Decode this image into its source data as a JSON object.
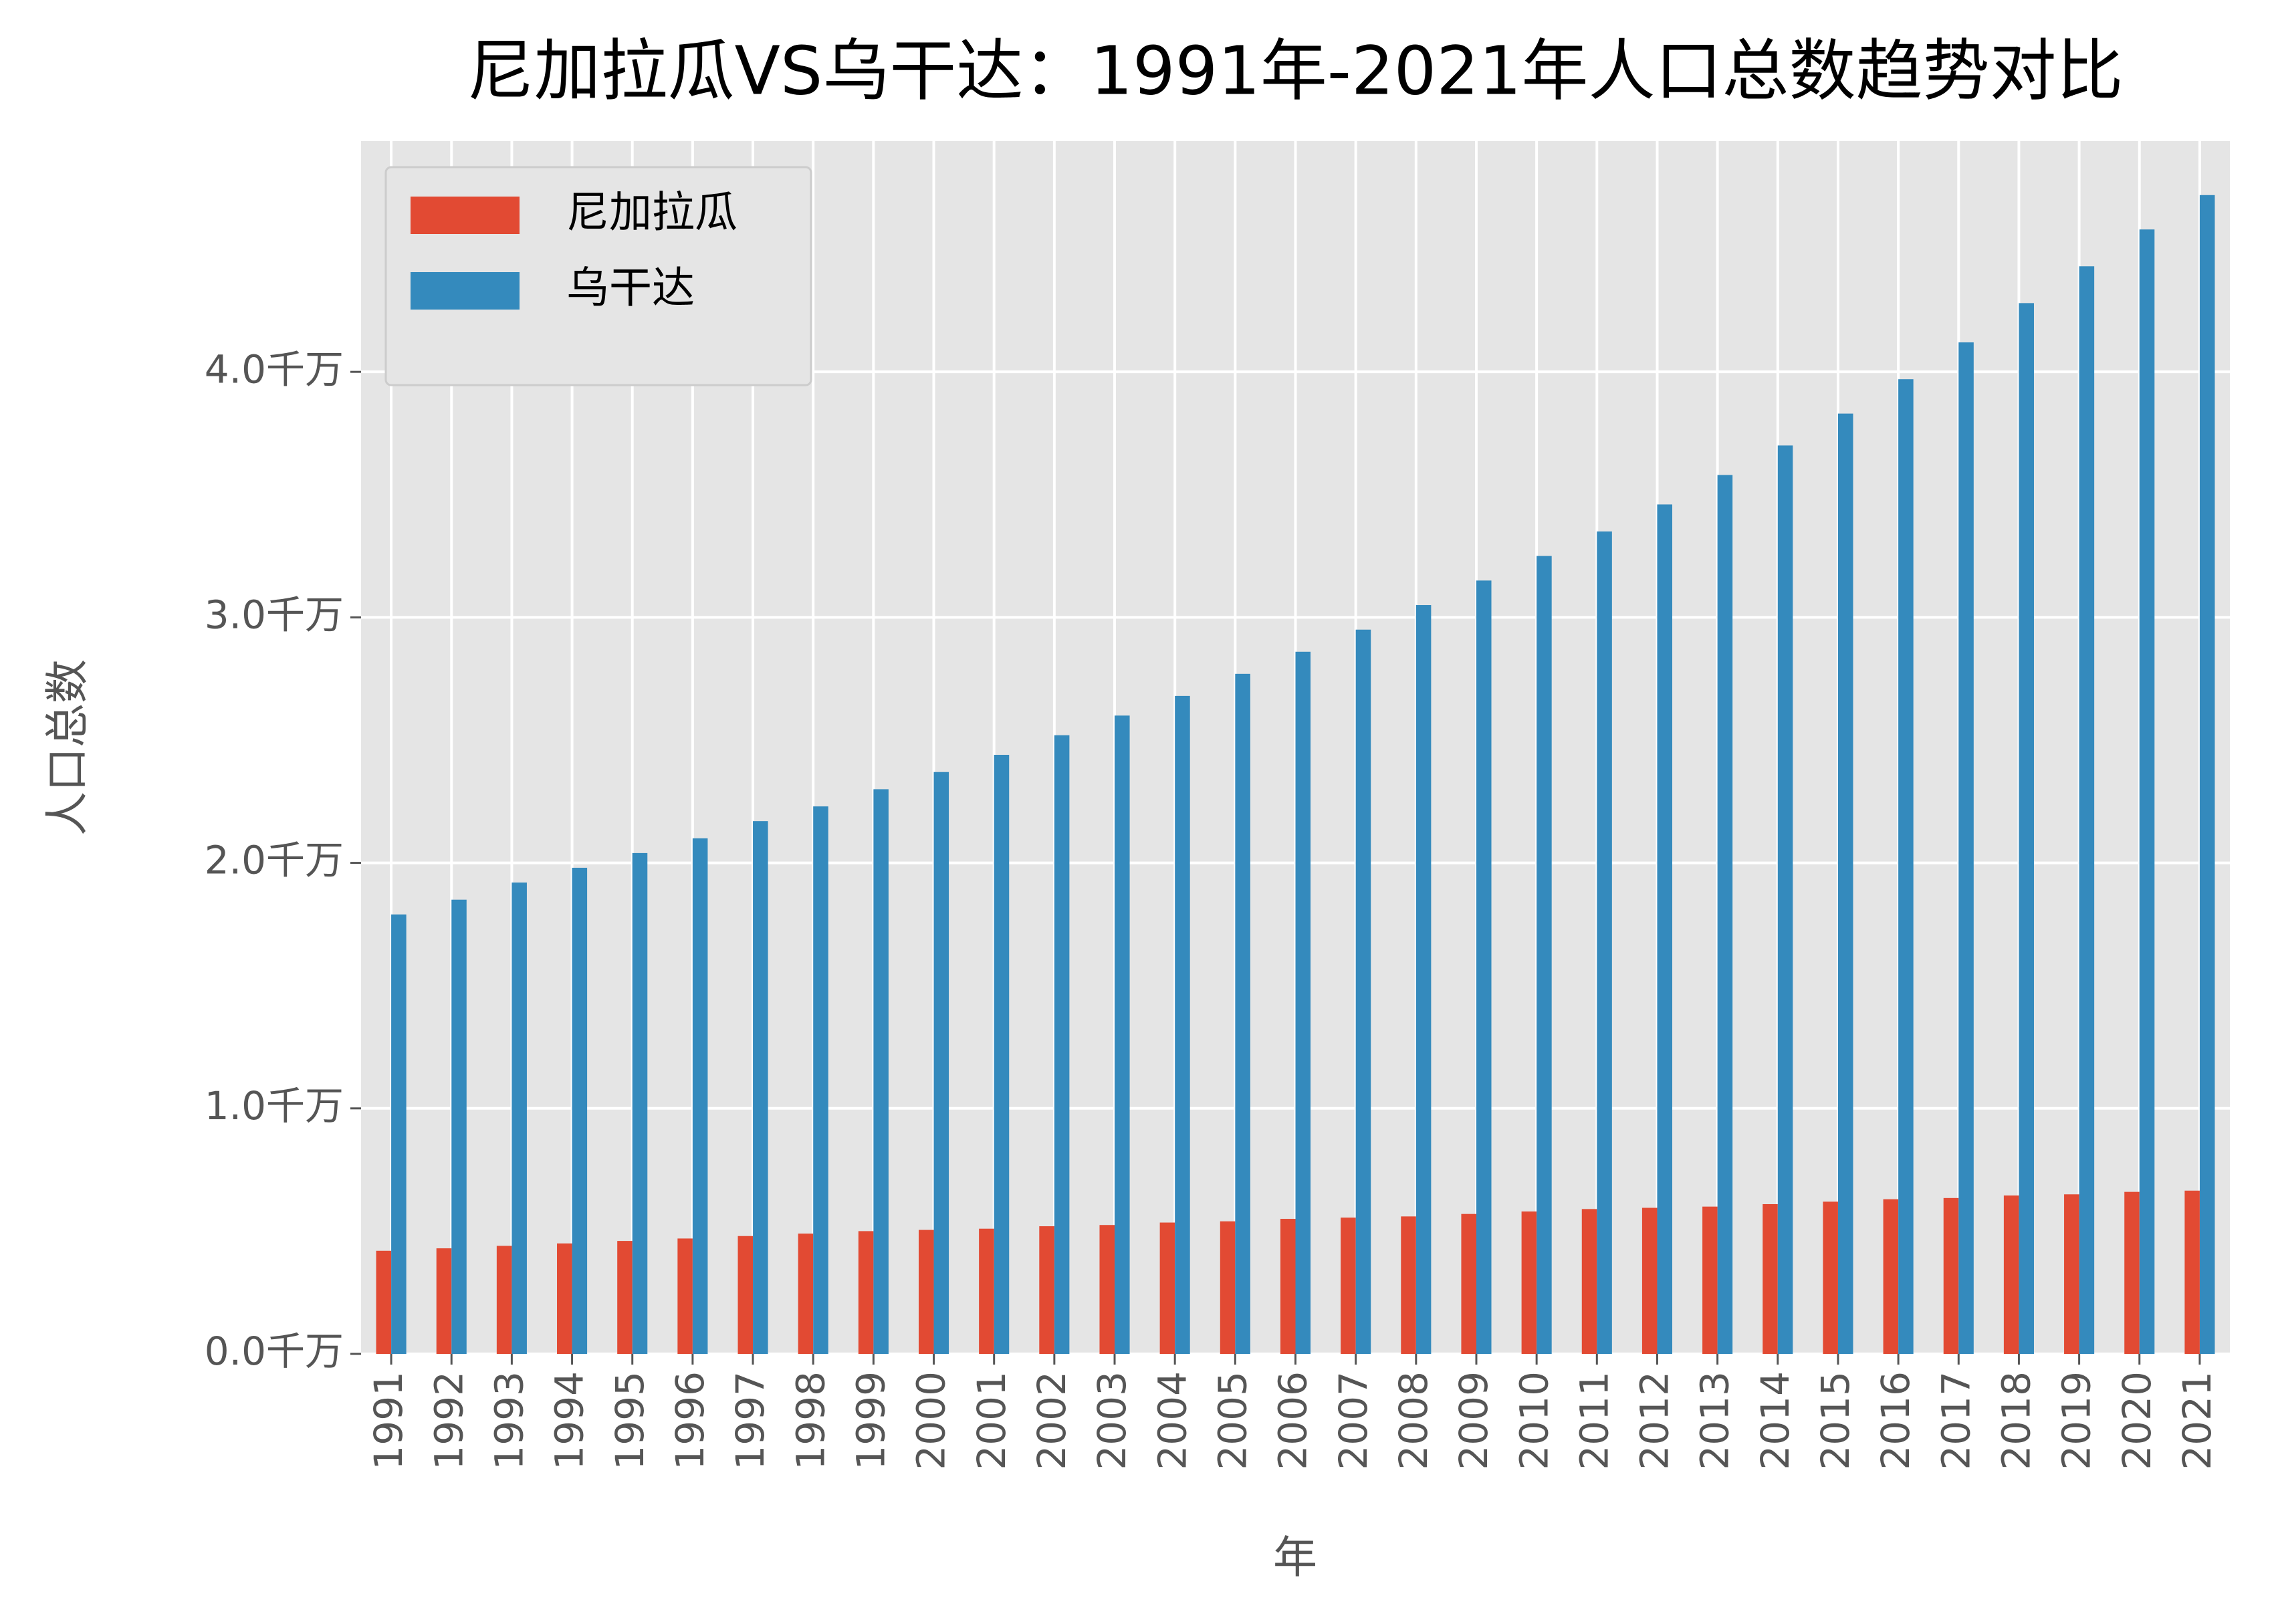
{
  "chart_data": {
    "type": "bar",
    "title": "尼加拉瓜VS乌干达：1991年-2021年人口总数趋势对比",
    "x_label": "年",
    "y_label": "人口总数",
    "categories": [
      "1991",
      "1992",
      "1993",
      "1994",
      "1995",
      "1996",
      "1997",
      "1998",
      "1999",
      "2000",
      "2001",
      "2002",
      "2003",
      "2004",
      "2005",
      "2006",
      "2007",
      "2008",
      "2009",
      "2010",
      "2011",
      "2012",
      "2013",
      "2014",
      "2015",
      "2016",
      "2017",
      "2018",
      "2019",
      "2020",
      "2021"
    ],
    "series": [
      {
        "name": "尼加拉瓜",
        "color": "#e24a33",
        "values": [
          0.42,
          0.43,
          0.44,
          0.45,
          0.46,
          0.47,
          0.48,
          0.49,
          0.5,
          0.505,
          0.51,
          0.52,
          0.525,
          0.535,
          0.54,
          0.55,
          0.555,
          0.56,
          0.57,
          0.58,
          0.59,
          0.595,
          0.6,
          0.61,
          0.62,
          0.63,
          0.635,
          0.645,
          0.65,
          0.66,
          0.665
        ]
      },
      {
        "name": "乌干达",
        "color": "#348abd",
        "values": [
          1.79,
          1.85,
          1.92,
          1.98,
          2.04,
          2.1,
          2.17,
          2.23,
          2.3,
          2.37,
          2.44,
          2.52,
          2.6,
          2.68,
          2.77,
          2.86,
          2.95,
          3.05,
          3.15,
          3.25,
          3.35,
          3.46,
          3.58,
          3.7,
          3.83,
          3.97,
          4.12,
          4.28,
          4.43,
          4.58,
          4.72
        ]
      }
    ],
    "ylim": [
      0,
      4.94
    ],
    "yticks": [
      {
        "value": 0,
        "label": "0.0千万"
      },
      {
        "value": 1,
        "label": "1.0千万"
      },
      {
        "value": 2,
        "label": "2.0千万"
      },
      {
        "value": 3,
        "label": "3.0千万"
      },
      {
        "value": 4,
        "label": "4.0千万"
      }
    ],
    "grid": true,
    "legend": "upper left"
  }
}
